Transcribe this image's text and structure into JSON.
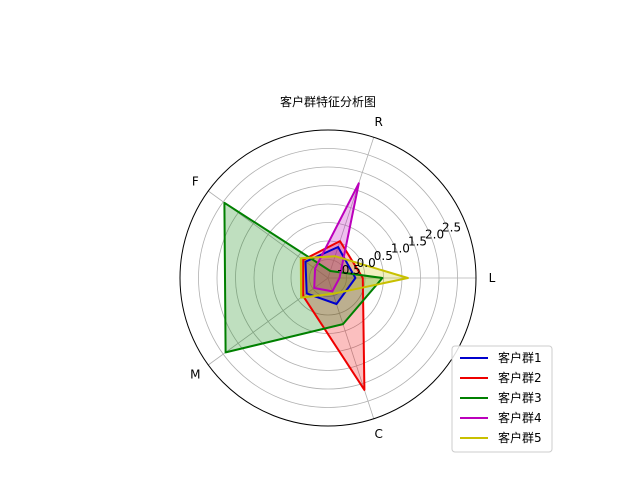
{
  "chart_data": {
    "type": "radar",
    "title": "客户群特征分析图",
    "axes": [
      "L",
      "R",
      "F",
      "M",
      "C"
    ],
    "r_ticks": [
      "-0.5",
      "0.0",
      "0.5",
      "1.0",
      "1.5",
      "2.0",
      "2.5"
    ],
    "r_min": -1.0,
    "r_max": 3.0,
    "grid": true,
    "legend_position": "lower right",
    "series": [
      {
        "name": "客户群1",
        "color": "#0000cc",
        "values": [
          -0.26,
          -0.12,
          -0.25,
          -0.29,
          -0.26
        ]
      },
      {
        "name": "客户群2",
        "color": "#ee0000",
        "values": [
          -0.06,
          0.05,
          -0.17,
          -0.17,
          2.18
        ]
      },
      {
        "name": "客户群3",
        "color": "#008000",
        "values": [
          0.47,
          -0.8,
          2.46,
          2.42,
          0.31
        ]
      },
      {
        "name": "客户群4",
        "color": "#bb00bb",
        "values": [
          -0.69,
          1.69,
          -0.57,
          -0.54,
          -0.62
        ]
      },
      {
        "name": "客户群5",
        "color": "#c8c000",
        "values": [
          1.16,
          -0.38,
          -0.09,
          -0.1,
          -0.55
        ]
      }
    ]
  }
}
